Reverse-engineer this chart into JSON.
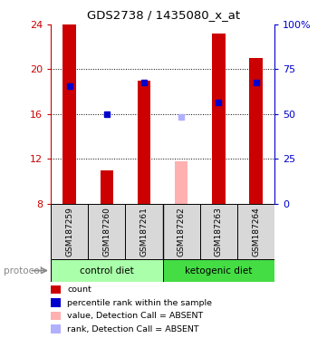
{
  "title": "GDS2738 / 1435080_x_at",
  "samples": [
    "GSM187259",
    "GSM187260",
    "GSM187261",
    "GSM187262",
    "GSM187263",
    "GSM187264"
  ],
  "red_bars": [
    24.0,
    11.0,
    19.0,
    null,
    23.2,
    21.0
  ],
  "pink_bars": [
    null,
    null,
    null,
    11.8,
    null,
    null
  ],
  "blue_squares": [
    18.5,
    16.0,
    18.8,
    null,
    17.0,
    18.8
  ],
  "light_blue_squares": [
    null,
    null,
    null,
    15.7,
    null,
    null
  ],
  "ylim_left": [
    8,
    24
  ],
  "ylim_right": [
    0,
    100
  ],
  "yticks_left": [
    8,
    12,
    16,
    20,
    24
  ],
  "yticks_right": [
    0,
    25,
    50,
    75,
    100
  ],
  "ytick_labels_right": [
    "0",
    "25",
    "50",
    "75",
    "100%"
  ],
  "color_red": "#cc0000",
  "color_pink": "#ffb0b0",
  "color_blue": "#0000cc",
  "color_light_blue": "#b0b0ff",
  "color_control": "#aaffaa",
  "color_ketogenic": "#44dd44",
  "bar_width": 0.35,
  "grid_lines": [
    12,
    16,
    20
  ],
  "legend_items": [
    {
      "color": "#cc0000",
      "label": "count"
    },
    {
      "color": "#0000cc",
      "label": "percentile rank within the sample"
    },
    {
      "color": "#ffb0b0",
      "label": "value, Detection Call = ABSENT"
    },
    {
      "color": "#b0b0ff",
      "label": "rank, Detection Call = ABSENT"
    }
  ]
}
